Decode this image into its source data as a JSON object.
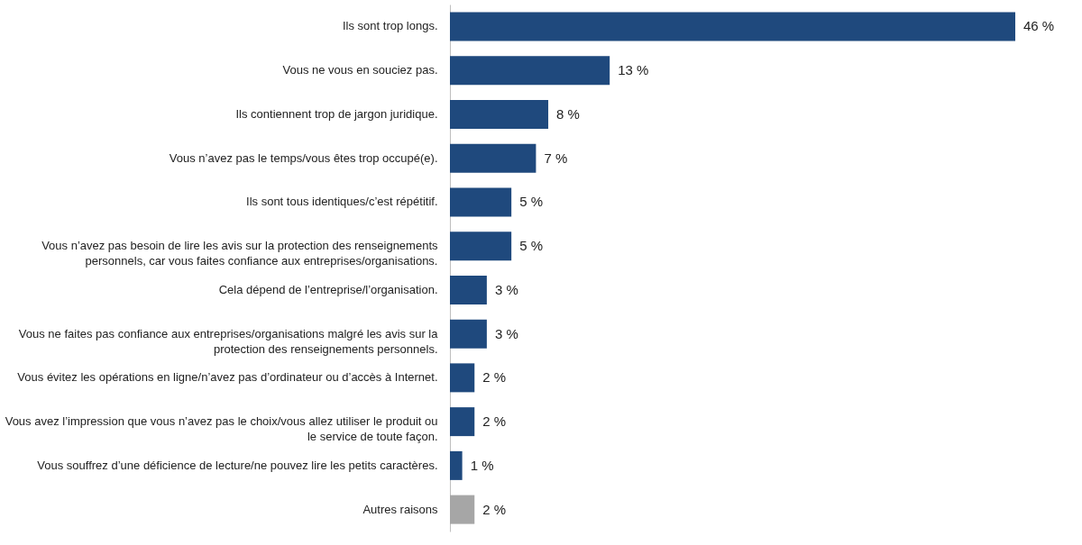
{
  "chart_data": {
    "type": "bar",
    "orientation": "horizontal",
    "categories": [
      "Ils sont trop longs.",
      "Vous ne vous en souciez pas.",
      "Ils contiennent trop de jargon juridique.",
      "Vous n’avez pas le temps/vous êtes trop occupé(e).",
      "Ils sont tous identiques/c’est répétitif.",
      "Vous n’avez pas besoin de lire les avis sur la protection des renseignements\npersonnels, car vous faites confiance aux entreprises/organisations.",
      "Cela dépend de l’entreprise/l’organisation.",
      "Vous ne faites pas confiance aux entreprises/organisations malgré les avis sur la\nprotection des renseignements personnels.",
      "Vous évitez les opérations en ligne/n’avez pas d’ordinateur ou d’accès à Internet.",
      "Vous avez l’impression que vous n’avez pas le choix/vous allez utiliser le produit ou\nle service de toute façon.",
      "Vous souffrez d’une déficience de lecture/ne pouvez lire les petits caractères.",
      "Autres raisons"
    ],
    "values": [
      46,
      13,
      8,
      7,
      5,
      5,
      3,
      3,
      2,
      2,
      1,
      2
    ],
    "value_labels": [
      "46 %",
      "13 %",
      "8 %",
      "7 %",
      "5 %",
      "5 %",
      "3 %",
      "3 %",
      "2 %",
      "2 %",
      "1 %",
      "2 %"
    ],
    "colors": [
      "#1f497d",
      "#1f497d",
      "#1f497d",
      "#1f497d",
      "#1f497d",
      "#1f497d",
      "#1f497d",
      "#1f497d",
      "#1f497d",
      "#1f497d",
      "#1f497d",
      "#a6a6a6"
    ],
    "grid": false
  }
}
